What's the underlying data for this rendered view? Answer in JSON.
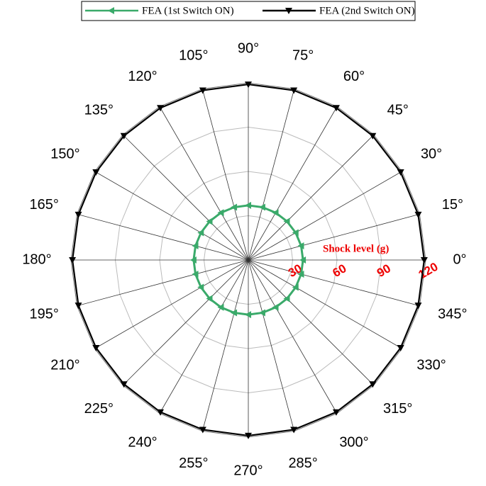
{
  "chart_data": {
    "type": "polar",
    "theta": [
      0,
      15,
      30,
      45,
      60,
      75,
      90,
      105,
      120,
      135,
      150,
      165,
      180,
      195,
      210,
      225,
      240,
      255,
      270,
      285,
      300,
      315,
      330,
      345
    ],
    "thetaticks": [
      {
        "value": 0,
        "label": "0°"
      },
      {
        "value": 15,
        "label": "15°"
      },
      {
        "value": 30,
        "label": "30°"
      },
      {
        "value": 45,
        "label": "45°"
      },
      {
        "value": 60,
        "label": "60°"
      },
      {
        "value": 75,
        "label": "75°"
      },
      {
        "value": 90,
        "label": "90°"
      },
      {
        "value": 105,
        "label": "105°"
      },
      {
        "value": 120,
        "label": "120°"
      },
      {
        "value": 135,
        "label": "135°"
      },
      {
        "value": 150,
        "label": "150°"
      },
      {
        "value": 165,
        "label": "165°"
      },
      {
        "value": 180,
        "label": "180°"
      },
      {
        "value": 195,
        "label": "195°"
      },
      {
        "value": 210,
        "label": "210°"
      },
      {
        "value": 225,
        "label": "225°"
      },
      {
        "value": 240,
        "label": "240°"
      },
      {
        "value": 255,
        "label": "255°"
      },
      {
        "value": 270,
        "label": "270°"
      },
      {
        "value": 285,
        "label": "285°"
      },
      {
        "value": 300,
        "label": "300°"
      },
      {
        "value": 315,
        "label": "315°"
      },
      {
        "value": 330,
        "label": "330°"
      },
      {
        "value": 345,
        "label": "345°"
      }
    ],
    "rlim": [
      0,
      120
    ],
    "rticks": [
      30,
      60,
      90,
      120
    ],
    "rlabel": "Shock level (g)",
    "series": [
      {
        "name": "FEA (1st Switch ON)",
        "color": "#3aaa6a",
        "marker": "left-triangle",
        "values": [
          37,
          37,
          37,
          37,
          37,
          37,
          37,
          37,
          37,
          37,
          37,
          37,
          37,
          37,
          37,
          37,
          37,
          37,
          37,
          37,
          37,
          37,
          37,
          37
        ]
      },
      {
        "name": "FEA (2nd Switch ON)",
        "color": "#000000",
        "marker": "down-triangle",
        "values": [
          119,
          119,
          119,
          119,
          119,
          119,
          119,
          119,
          119,
          119,
          119,
          119,
          119,
          119,
          119,
          119,
          119,
          119,
          119,
          119,
          119,
          119,
          119,
          119
        ]
      }
    ]
  }
}
